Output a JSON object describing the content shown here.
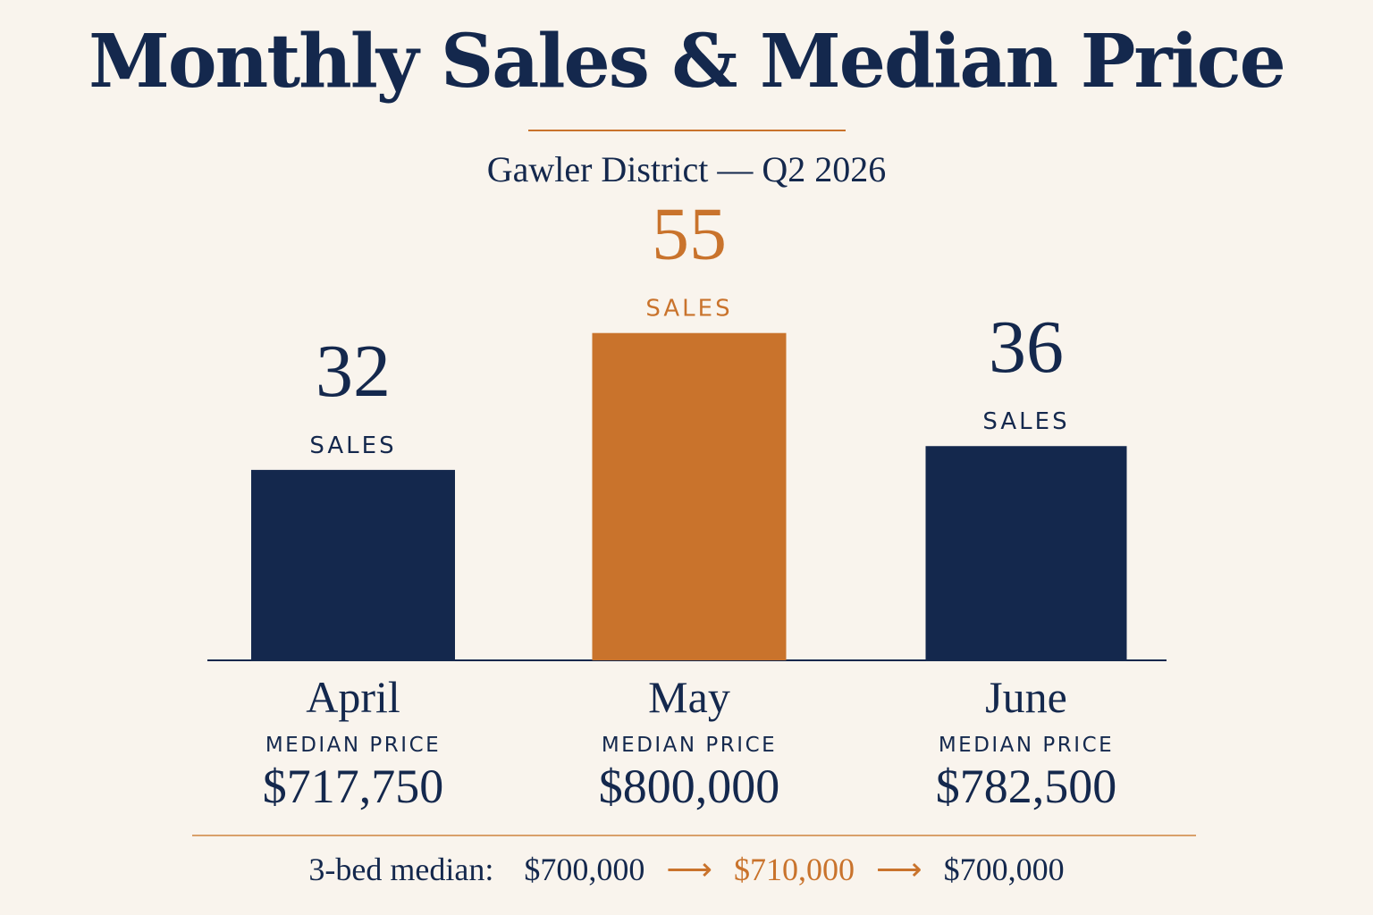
{
  "colors": {
    "background": "#F9F4ED",
    "navy": "#14284D",
    "accent": "#C9732C"
  },
  "title": "Monthly Sales & Median Price",
  "subtitle": "Gawler District — Q2 2026",
  "chart_data": {
    "type": "bar",
    "categories": [
      "April",
      "May",
      "June"
    ],
    "values": [
      32,
      55,
      36
    ],
    "value_unit_label": "SALES",
    "highlight_index": 1,
    "median_price_label": "MEDIAN PRICE",
    "median_prices": [
      "$717,750",
      "$800,000",
      "$782,500"
    ],
    "grid": false,
    "legend": "none"
  },
  "footer": {
    "label": "3-bed median:",
    "values": [
      "$700,000",
      "$710,000",
      "$700,000"
    ],
    "arrow": "⟶",
    "highlight_index": 1
  }
}
